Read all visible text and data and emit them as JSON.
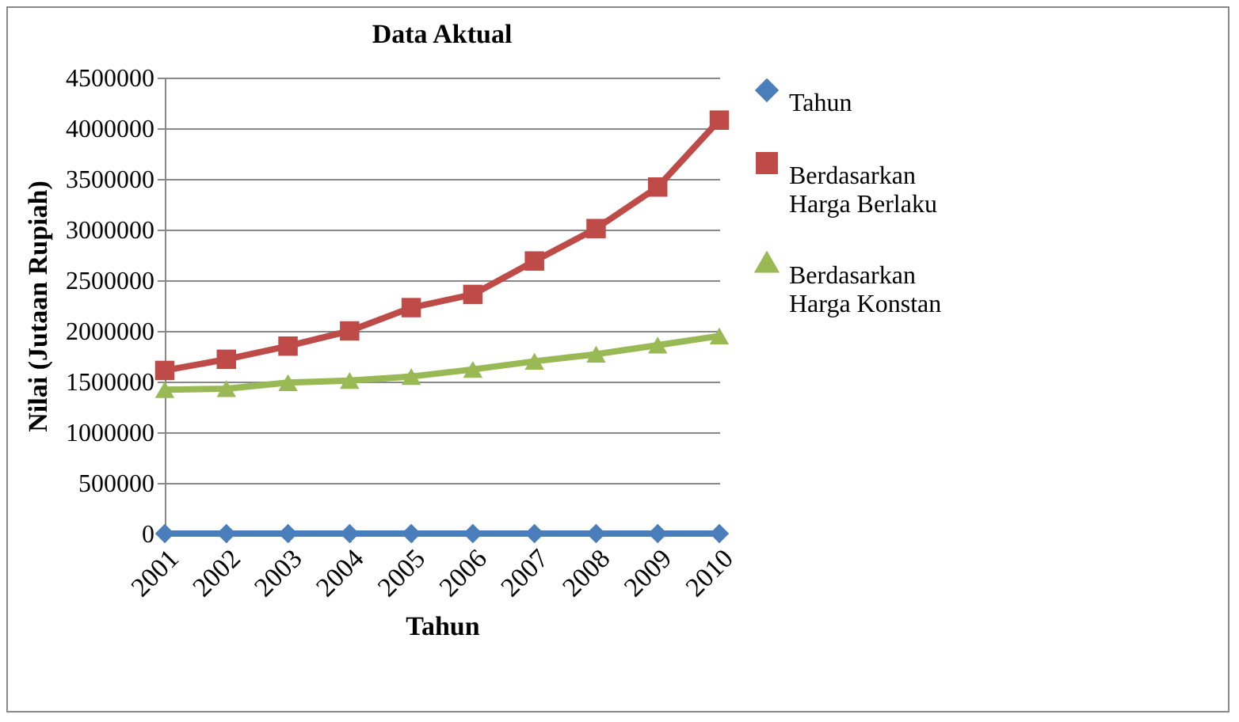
{
  "chart_data": {
    "type": "line",
    "title": "Data Aktual",
    "xlabel": "Tahun",
    "ylabel": "Nilai (Jutaan Rupiah)",
    "categories": [
      "2001",
      "2002",
      "2003",
      "2004",
      "2005",
      "2006",
      "2007",
      "2008",
      "2009",
      "2010"
    ],
    "series": [
      {
        "name": "Tahun",
        "color": "#4a7ebb",
        "marker": "diamond",
        "values": [
          0,
          0,
          0,
          0,
          0,
          0,
          0,
          0,
          0,
          0
        ]
      },
      {
        "name": "Berdasarkan Harga Berlaku",
        "color": "#be4b48",
        "marker": "square",
        "values": [
          1610000,
          1720000,
          1850000,
          2000000,
          2230000,
          2360000,
          2690000,
          3010000,
          3420000,
          4080000
        ]
      },
      {
        "name": "Berdasarkan Harga Konstan",
        "color": "#98b954",
        "marker": "triangle",
        "values": [
          1420000,
          1430000,
          1490000,
          1510000,
          1550000,
          1620000,
          1700000,
          1770000,
          1860000,
          1950000
        ]
      }
    ],
    "ylim": [
      0,
      4500000
    ],
    "yticks": [
      0,
      500000,
      1000000,
      1500000,
      2000000,
      2500000,
      3000000,
      3500000,
      4000000,
      4500000
    ],
    "grid": "y",
    "legend": "right"
  }
}
